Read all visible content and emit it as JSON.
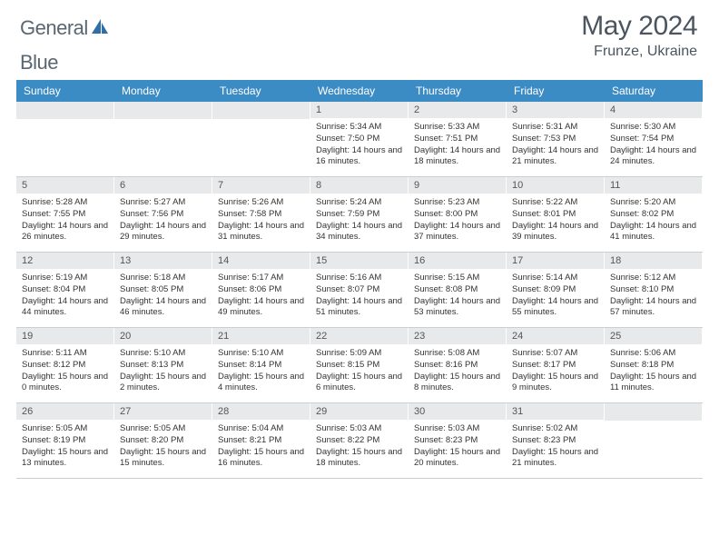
{
  "brand": {
    "part1": "General",
    "part2": "Blue"
  },
  "title": "May 2024",
  "location": "Frunze, Ukraine",
  "colors": {
    "header_bg": "#3b8bc4",
    "header_text": "#ffffff",
    "daynum_bg": "#e7e9eb",
    "text": "#333333",
    "title_text": "#4a5560",
    "logo_gray": "#5a6770",
    "logo_blue": "#2f6fa8",
    "border": "#c8d0d6"
  },
  "day_names": [
    "Sunday",
    "Monday",
    "Tuesday",
    "Wednesday",
    "Thursday",
    "Friday",
    "Saturday"
  ],
  "weeks": [
    [
      {
        "n": "",
        "lines": []
      },
      {
        "n": "",
        "lines": []
      },
      {
        "n": "",
        "lines": []
      },
      {
        "n": "1",
        "lines": [
          "Sunrise: 5:34 AM",
          "Sunset: 7:50 PM",
          "Daylight: 14 hours and 16 minutes."
        ]
      },
      {
        "n": "2",
        "lines": [
          "Sunrise: 5:33 AM",
          "Sunset: 7:51 PM",
          "Daylight: 14 hours and 18 minutes."
        ]
      },
      {
        "n": "3",
        "lines": [
          "Sunrise: 5:31 AM",
          "Sunset: 7:53 PM",
          "Daylight: 14 hours and 21 minutes."
        ]
      },
      {
        "n": "4",
        "lines": [
          "Sunrise: 5:30 AM",
          "Sunset: 7:54 PM",
          "Daylight: 14 hours and 24 minutes."
        ]
      }
    ],
    [
      {
        "n": "5",
        "lines": [
          "Sunrise: 5:28 AM",
          "Sunset: 7:55 PM",
          "Daylight: 14 hours and 26 minutes."
        ]
      },
      {
        "n": "6",
        "lines": [
          "Sunrise: 5:27 AM",
          "Sunset: 7:56 PM",
          "Daylight: 14 hours and 29 minutes."
        ]
      },
      {
        "n": "7",
        "lines": [
          "Sunrise: 5:26 AM",
          "Sunset: 7:58 PM",
          "Daylight: 14 hours and 31 minutes."
        ]
      },
      {
        "n": "8",
        "lines": [
          "Sunrise: 5:24 AM",
          "Sunset: 7:59 PM",
          "Daylight: 14 hours and 34 minutes."
        ]
      },
      {
        "n": "9",
        "lines": [
          "Sunrise: 5:23 AM",
          "Sunset: 8:00 PM",
          "Daylight: 14 hours and 37 minutes."
        ]
      },
      {
        "n": "10",
        "lines": [
          "Sunrise: 5:22 AM",
          "Sunset: 8:01 PM",
          "Daylight: 14 hours and 39 minutes."
        ]
      },
      {
        "n": "11",
        "lines": [
          "Sunrise: 5:20 AM",
          "Sunset: 8:02 PM",
          "Daylight: 14 hours and 41 minutes."
        ]
      }
    ],
    [
      {
        "n": "12",
        "lines": [
          "Sunrise: 5:19 AM",
          "Sunset: 8:04 PM",
          "Daylight: 14 hours and 44 minutes."
        ]
      },
      {
        "n": "13",
        "lines": [
          "Sunrise: 5:18 AM",
          "Sunset: 8:05 PM",
          "Daylight: 14 hours and 46 minutes."
        ]
      },
      {
        "n": "14",
        "lines": [
          "Sunrise: 5:17 AM",
          "Sunset: 8:06 PM",
          "Daylight: 14 hours and 49 minutes."
        ]
      },
      {
        "n": "15",
        "lines": [
          "Sunrise: 5:16 AM",
          "Sunset: 8:07 PM",
          "Daylight: 14 hours and 51 minutes."
        ]
      },
      {
        "n": "16",
        "lines": [
          "Sunrise: 5:15 AM",
          "Sunset: 8:08 PM",
          "Daylight: 14 hours and 53 minutes."
        ]
      },
      {
        "n": "17",
        "lines": [
          "Sunrise: 5:14 AM",
          "Sunset: 8:09 PM",
          "Daylight: 14 hours and 55 minutes."
        ]
      },
      {
        "n": "18",
        "lines": [
          "Sunrise: 5:12 AM",
          "Sunset: 8:10 PM",
          "Daylight: 14 hours and 57 minutes."
        ]
      }
    ],
    [
      {
        "n": "19",
        "lines": [
          "Sunrise: 5:11 AM",
          "Sunset: 8:12 PM",
          "Daylight: 15 hours and 0 minutes."
        ]
      },
      {
        "n": "20",
        "lines": [
          "Sunrise: 5:10 AM",
          "Sunset: 8:13 PM",
          "Daylight: 15 hours and 2 minutes."
        ]
      },
      {
        "n": "21",
        "lines": [
          "Sunrise: 5:10 AM",
          "Sunset: 8:14 PM",
          "Daylight: 15 hours and 4 minutes."
        ]
      },
      {
        "n": "22",
        "lines": [
          "Sunrise: 5:09 AM",
          "Sunset: 8:15 PM",
          "Daylight: 15 hours and 6 minutes."
        ]
      },
      {
        "n": "23",
        "lines": [
          "Sunrise: 5:08 AM",
          "Sunset: 8:16 PM",
          "Daylight: 15 hours and 8 minutes."
        ]
      },
      {
        "n": "24",
        "lines": [
          "Sunrise: 5:07 AM",
          "Sunset: 8:17 PM",
          "Daylight: 15 hours and 9 minutes."
        ]
      },
      {
        "n": "25",
        "lines": [
          "Sunrise: 5:06 AM",
          "Sunset: 8:18 PM",
          "Daylight: 15 hours and 11 minutes."
        ]
      }
    ],
    [
      {
        "n": "26",
        "lines": [
          "Sunrise: 5:05 AM",
          "Sunset: 8:19 PM",
          "Daylight: 15 hours and 13 minutes."
        ]
      },
      {
        "n": "27",
        "lines": [
          "Sunrise: 5:05 AM",
          "Sunset: 8:20 PM",
          "Daylight: 15 hours and 15 minutes."
        ]
      },
      {
        "n": "28",
        "lines": [
          "Sunrise: 5:04 AM",
          "Sunset: 8:21 PM",
          "Daylight: 15 hours and 16 minutes."
        ]
      },
      {
        "n": "29",
        "lines": [
          "Sunrise: 5:03 AM",
          "Sunset: 8:22 PM",
          "Daylight: 15 hours and 18 minutes."
        ]
      },
      {
        "n": "30",
        "lines": [
          "Sunrise: 5:03 AM",
          "Sunset: 8:23 PM",
          "Daylight: 15 hours and 20 minutes."
        ]
      },
      {
        "n": "31",
        "lines": [
          "Sunrise: 5:02 AM",
          "Sunset: 8:23 PM",
          "Daylight: 15 hours and 21 minutes."
        ]
      },
      {
        "n": "",
        "lines": []
      }
    ]
  ]
}
